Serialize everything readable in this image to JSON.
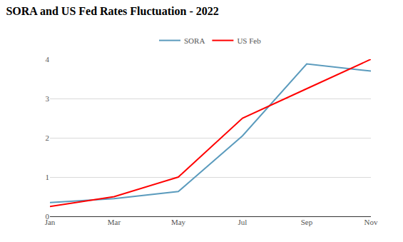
{
  "chart_data": {
    "type": "line",
    "title": "SORA and US Fed Rates Fluctuation - 2022",
    "categories": [
      "Jan",
      "Mar",
      "May",
      "Jul",
      "Sep",
      "Nov"
    ],
    "series": [
      {
        "name": "SORA",
        "color": "#5b9bbd",
        "values": [
          0.35,
          0.45,
          0.63,
          2.05,
          3.88,
          3.7
        ]
      },
      {
        "name": "US Feb",
        "color": "#ff0000",
        "values": [
          0.25,
          0.5,
          1.0,
          2.5,
          3.25,
          4.0
        ]
      }
    ],
    "ylim": [
      0,
      4
    ],
    "yticks": [
      0,
      1,
      2,
      3,
      4
    ],
    "grid": true,
    "legend": "top"
  }
}
